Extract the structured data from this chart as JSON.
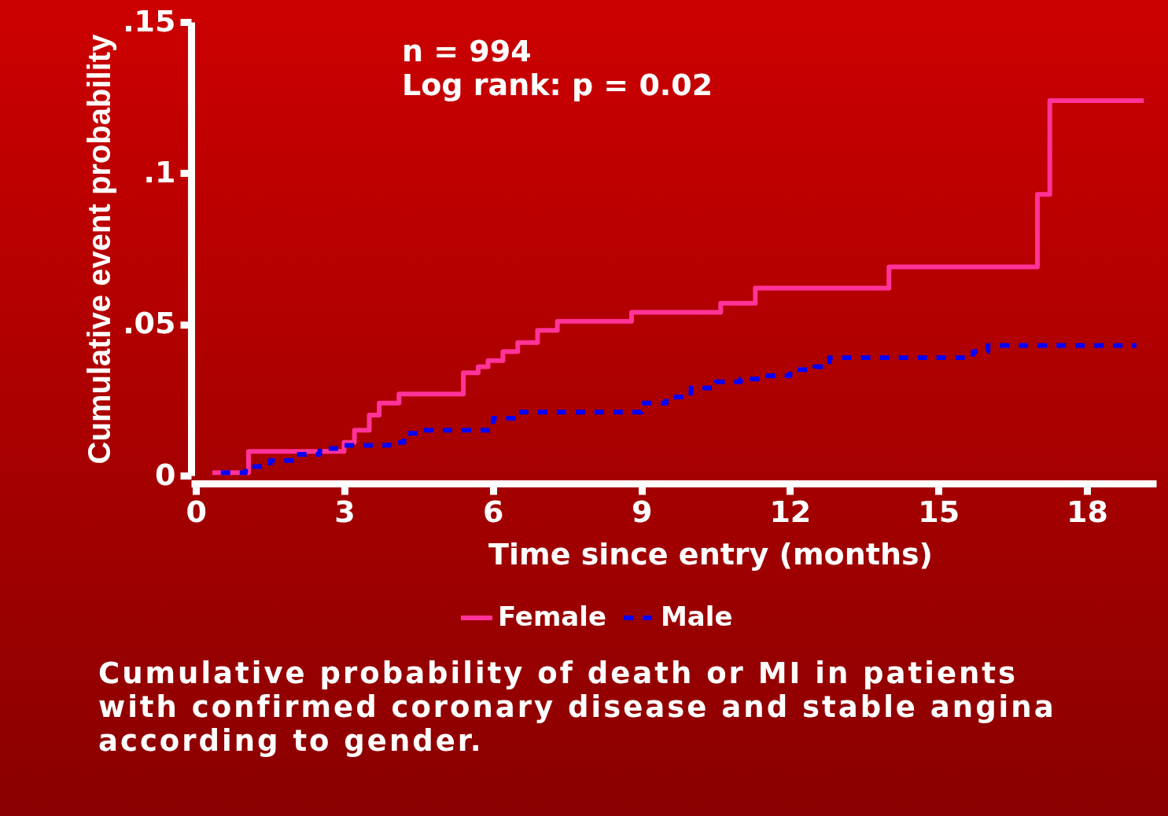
{
  "chart_data": {
    "type": "step",
    "xlabel": "Time since entry (months)",
    "ylabel": "Cumulative event probability",
    "annotations": [
      "n = 994",
      "Log rank: p = 0.02",
      "Cumulative probability of death or MI in patients with confirmed coronary disease and stable angina according to gender."
    ],
    "xlim": [
      -0.1,
      19.4
    ],
    "xticks": [
      0,
      3,
      6,
      9,
      12,
      15,
      18
    ],
    "ylim": [
      0,
      0.15
    ],
    "yticks": [
      0,
      {
        "value": 0.05,
        "label": ".05"
      },
      {
        "value": 0.1,
        "label": ".1"
      },
      {
        "value": 0.15,
        "label": ".15"
      }
    ],
    "grid": false,
    "legend": "bottom",
    "series": [
      {
        "name": "Female",
        "color": "#ff3399",
        "line_style": "solid",
        "x": [
          0.33,
          1.06,
          2.99,
          3.2,
          3.5,
          3.7,
          4.1,
          5.4,
          5.7,
          5.9,
          6.2,
          6.5,
          6.9,
          7.3,
          8.8,
          10.6,
          11.3,
          14.0,
          17.0,
          17.25,
          19.15
        ],
        "values": [
          0.001,
          0.008,
          0.011,
          0.015,
          0.02,
          0.024,
          0.027,
          0.034,
          0.036,
          0.038,
          0.041,
          0.044,
          0.048,
          0.051,
          0.054,
          0.057,
          0.062,
          0.069,
          0.093,
          0.124,
          0.124
        ]
      },
      {
        "name": "Male",
        "color": "#0000ff",
        "line_style": "dashed",
        "x": [
          0.5,
          1.0,
          1.5,
          2.0,
          2.5,
          3.0,
          3.5,
          3.9,
          4.2,
          4.6,
          5.5,
          6.0,
          6.5,
          8.5,
          9.0,
          9.5,
          10.0,
          10.5,
          11.0,
          11.5,
          12.0,
          12.5,
          12.8,
          15.3,
          15.7,
          16.0,
          19.0
        ],
        "values": [
          0.001,
          0.003,
          0.005,
          0.007,
          0.009,
          0.01,
          0.01,
          0.011,
          0.014,
          0.015,
          0.015,
          0.019,
          0.021,
          0.021,
          0.024,
          0.026,
          0.029,
          0.031,
          0.032,
          0.033,
          0.035,
          0.036,
          0.039,
          0.039,
          0.041,
          0.043,
          0.043
        ]
      }
    ]
  }
}
